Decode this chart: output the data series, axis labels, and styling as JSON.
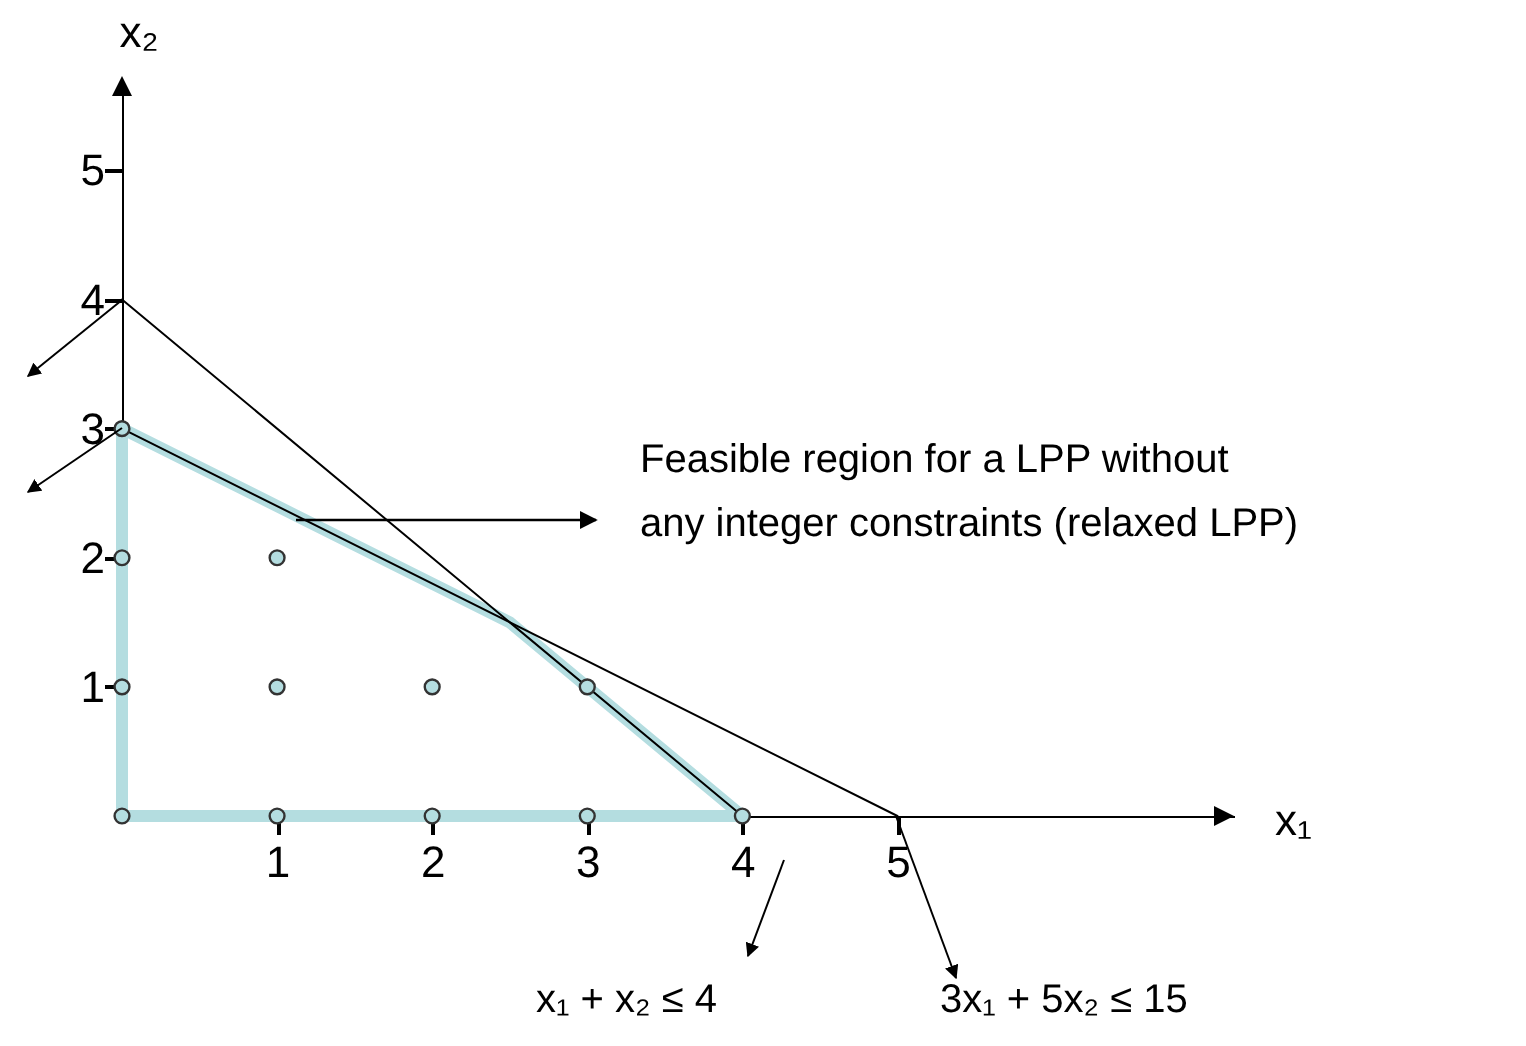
{
  "chart_data": {
    "type": "line",
    "xlabel": "x₁",
    "ylabel": "x₂",
    "xlim": [
      0,
      7.17
    ],
    "ylim": [
      0,
      5.7
    ],
    "xticks": [
      1,
      2,
      3,
      4,
      5
    ],
    "yticks": [
      1,
      2,
      3,
      4,
      5
    ],
    "grid": false,
    "series": [
      {
        "color": "#b4dde0",
        "x": [
          0,
          0
        ],
        "values": [
          0,
          3
        ]
      },
      {
        "color": "#b4dde0",
        "x": [
          0,
          2.5,
          4
        ],
        "values": [
          3,
          1.5,
          0
        ]
      },
      {
        "color": "#b4dde0",
        "x": [
          0,
          4
        ],
        "values": [
          0,
          0
        ]
      },
      {
        "color": "#000000",
        "x": [
          0,
          4
        ],
        "values": [
          4,
          0
        ]
      },
      {
        "color": "#000000",
        "x": [
          0,
          5
        ],
        "values": [
          3,
          0
        ]
      },
      {
        "type": "scatter",
        "color": "#b4dde0",
        "marker": "circle",
        "x": [
          0,
          1,
          2,
          3,
          4,
          0,
          1,
          2,
          3,
          0,
          1,
          0
        ],
        "values": [
          0,
          0,
          0,
          0,
          0,
          1,
          1,
          1,
          1,
          2,
          2,
          3
        ]
      }
    ],
    "annotations": [
      "Feasible region for a LPP without",
      "any integer constraints (relaxed LPP)",
      "x₁ + x₂ ≤ 4",
      "3x₁ + 5x₂ ≤ 15"
    ]
  }
}
